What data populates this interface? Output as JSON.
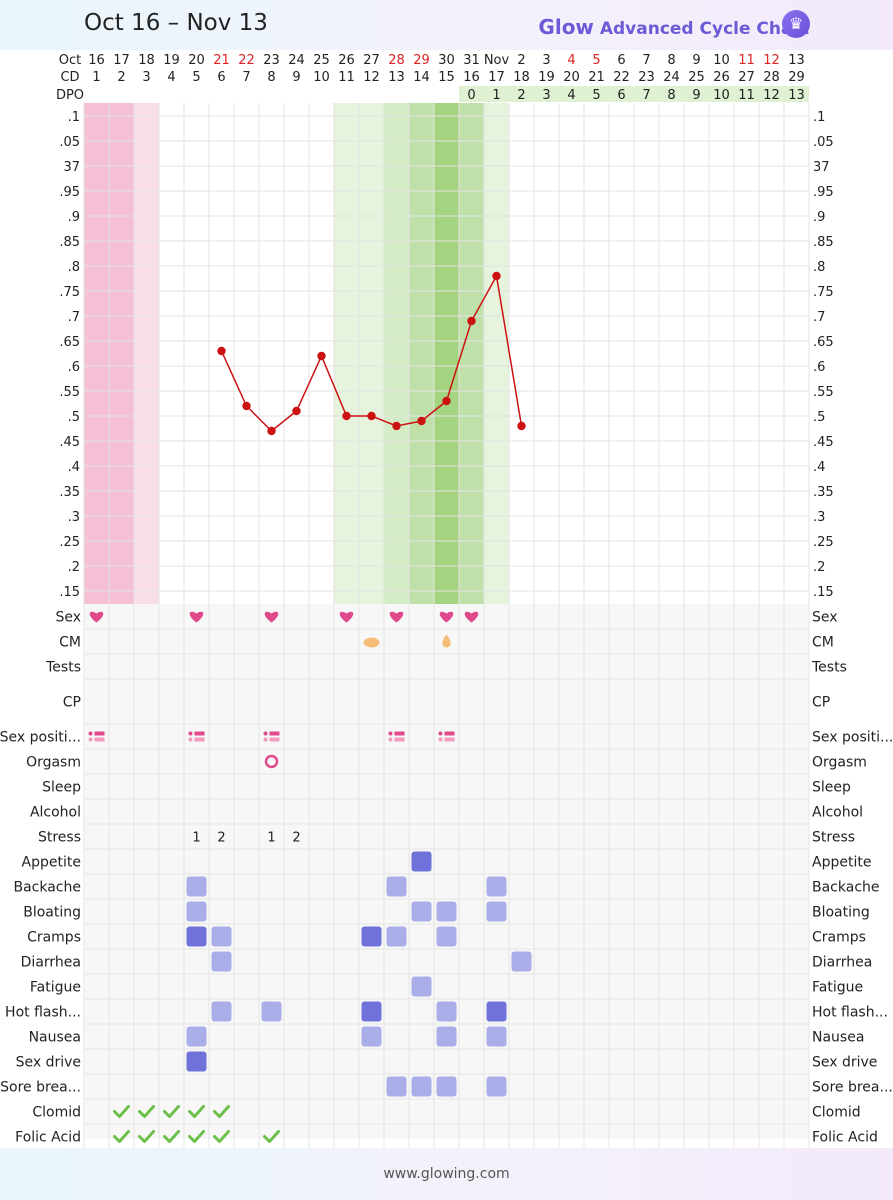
{
  "header": {
    "date_range": "Oct 16 – Nov 13",
    "brand_logo": "Glow",
    "brand_title": "Advanced Cycle Chart",
    "brand_icon": "crown-icon"
  },
  "footer": {
    "url": "www.glowing.com"
  },
  "colors": {
    "period_dark": "#f5bfd6",
    "period_light": "#f9dde9",
    "fertile_light": "#e6f4de",
    "fertile_mid": "#d4ecc6",
    "fertile_dark": "#bfe1a9",
    "ovulation": "#a4d47f",
    "dpo_band": "#dff0d3",
    "temp_line": "#cc1111",
    "weekend_red": "#dd2222",
    "heart": "#e04a8c",
    "symptom_light": "#a9aee8",
    "symptom_dark": "#6f72d8",
    "check": "#6cc04a"
  },
  "chart_data": {
    "type": "line",
    "days": [
      {
        "date": "16",
        "cd": "1"
      },
      {
        "date": "17",
        "cd": "2"
      },
      {
        "date": "18",
        "cd": "3"
      },
      {
        "date": "19",
        "cd": "4"
      },
      {
        "date": "20",
        "cd": "5"
      },
      {
        "date": "21",
        "cd": "6",
        "red": true
      },
      {
        "date": "22",
        "cd": "7",
        "red": true
      },
      {
        "date": "23",
        "cd": "8"
      },
      {
        "date": "24",
        "cd": "9"
      },
      {
        "date": "25",
        "cd": "10"
      },
      {
        "date": "26",
        "cd": "11"
      },
      {
        "date": "27",
        "cd": "12"
      },
      {
        "date": "28",
        "cd": "13",
        "red": true
      },
      {
        "date": "29",
        "cd": "14",
        "red": true
      },
      {
        "date": "30",
        "cd": "15"
      },
      {
        "date": "31",
        "cd": "16"
      },
      {
        "date": "Nov",
        "cd": "17"
      },
      {
        "date": "2",
        "cd": "18"
      },
      {
        "date": "3",
        "cd": "19"
      },
      {
        "date": "4",
        "cd": "20",
        "red": true
      },
      {
        "date": "5",
        "cd": "21",
        "red": true
      },
      {
        "date": "6",
        "cd": "22"
      },
      {
        "date": "7",
        "cd": "23"
      },
      {
        "date": "8",
        "cd": "24"
      },
      {
        "date": "9",
        "cd": "25"
      },
      {
        "date": "10",
        "cd": "26"
      },
      {
        "date": "11",
        "cd": "27",
        "red": true
      },
      {
        "date": "12",
        "cd": "28",
        "red": true
      },
      {
        "date": "13",
        "cd": "29"
      }
    ],
    "row_labels": {
      "month": "Oct",
      "cd": "CD",
      "dpo": "DPO"
    },
    "dpo_start_index": 15,
    "dpo_values": [
      "0",
      "1",
      "2",
      "3",
      "4",
      "5",
      "6",
      "7",
      "8",
      "9",
      "10",
      "11",
      "12",
      "13"
    ],
    "y_tick_labels": [
      ".1",
      ".05",
      "37",
      ".95",
      ".9",
      ".85",
      ".8",
      ".75",
      ".7",
      ".65",
      ".6",
      ".55",
      ".5",
      ".45",
      ".4",
      ".35",
      ".3",
      ".25",
      ".2",
      ".15"
    ],
    "ylim": [
      36.15,
      37.1
    ],
    "temperatures": [
      null,
      null,
      null,
      null,
      null,
      36.63,
      36.52,
      36.47,
      36.51,
      36.62,
      36.5,
      36.5,
      36.48,
      36.49,
      36.53,
      36.69,
      36.78,
      36.48,
      null,
      null,
      null,
      null,
      null,
      null,
      null,
      null,
      null,
      null,
      null
    ],
    "period_days": [
      {
        "index": 0,
        "level": "dark"
      },
      {
        "index": 1,
        "level": "dark"
      },
      {
        "index": 2,
        "level": "light"
      }
    ],
    "fertile_days": [
      {
        "index": 10,
        "level": "light"
      },
      {
        "index": 11,
        "level": "light"
      },
      {
        "index": 12,
        "level": "mid"
      },
      {
        "index": 13,
        "level": "dark"
      },
      {
        "index": 14,
        "level": "ovulation"
      },
      {
        "index": 15,
        "level": "dark"
      },
      {
        "index": 16,
        "level": "light"
      }
    ],
    "grid": true
  },
  "log_rows": [
    {
      "label": "Sex",
      "type": "heart",
      "days": [
        0,
        4,
        7,
        10,
        12,
        14,
        15
      ]
    },
    {
      "label": "CM",
      "type": "cm",
      "days": [
        11,
        14
      ],
      "cm_kinds": [
        "creamy",
        "watery"
      ]
    },
    {
      "label": "Tests",
      "type": "none",
      "days": []
    },
    {
      "label": "CP",
      "type": "none",
      "days": []
    },
    {
      "label": "Sex positi...",
      "type": "position",
      "days": [
        0,
        4,
        7,
        12,
        14
      ]
    },
    {
      "label": "Orgasm",
      "type": "ring",
      "days": [
        7
      ]
    },
    {
      "label": "Sleep",
      "type": "none",
      "days": []
    },
    {
      "label": "Alcohol",
      "type": "none",
      "days": []
    },
    {
      "label": "Stress",
      "type": "number",
      "days": [
        4,
        5,
        7,
        8
      ],
      "values": [
        "1",
        "2",
        "1",
        "2"
      ]
    },
    {
      "label": "Appetite",
      "type": "square",
      "days": [
        13
      ],
      "levels": [
        "dark"
      ]
    },
    {
      "label": "Backache",
      "type": "square",
      "days": [
        4,
        12,
        16
      ],
      "levels": [
        "light",
        "light",
        "light"
      ]
    },
    {
      "label": "Bloating",
      "type": "square",
      "days": [
        4,
        13,
        14,
        16
      ],
      "levels": [
        "light",
        "light",
        "light",
        "light"
      ]
    },
    {
      "label": "Cramps",
      "type": "square",
      "days": [
        4,
        5,
        11,
        12,
        14
      ],
      "levels": [
        "dark",
        "light",
        "dark",
        "light",
        "light"
      ]
    },
    {
      "label": "Diarrhea",
      "type": "square",
      "days": [
        5,
        17
      ],
      "levels": [
        "light",
        "light"
      ]
    },
    {
      "label": "Fatigue",
      "type": "square",
      "days": [
        13
      ],
      "levels": [
        "light"
      ]
    },
    {
      "label": "Hot flash...",
      "type": "square",
      "days": [
        5,
        7,
        11,
        14,
        16
      ],
      "levels": [
        "light",
        "light",
        "dark",
        "light",
        "dark"
      ]
    },
    {
      "label": "Nausea",
      "type": "square",
      "days": [
        4,
        11,
        14,
        16
      ],
      "levels": [
        "light",
        "light",
        "light",
        "light"
      ]
    },
    {
      "label": "Sex drive",
      "type": "square",
      "days": [
        4
      ],
      "levels": [
        "dark"
      ]
    },
    {
      "label": "Sore brea...",
      "type": "square",
      "days": [
        12,
        13,
        14,
        16
      ],
      "levels": [
        "light",
        "light",
        "light",
        "light"
      ]
    },
    {
      "label": "Clomid",
      "type": "check",
      "days": [
        1,
        2,
        3,
        4,
        5
      ]
    },
    {
      "label": "Folic Acid",
      "type": "check",
      "days": [
        1,
        2,
        3,
        4,
        5,
        7
      ]
    }
  ]
}
